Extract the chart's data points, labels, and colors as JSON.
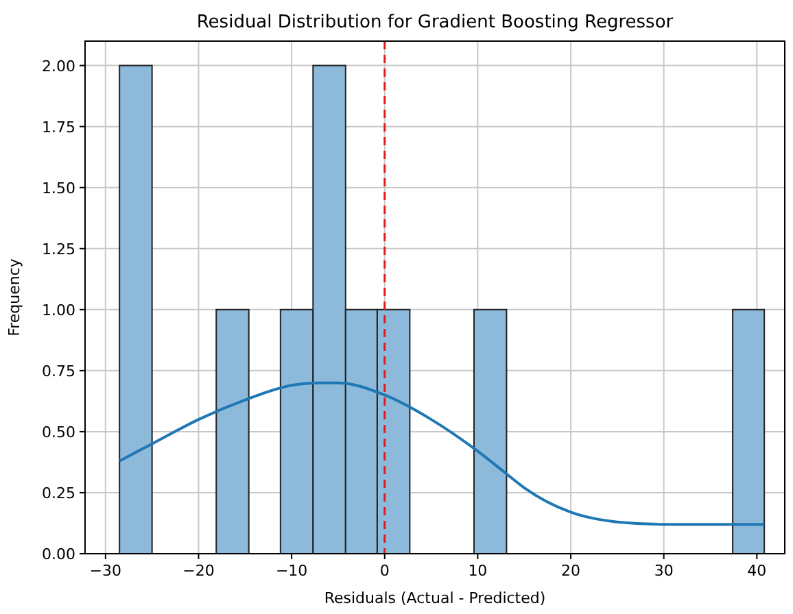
{
  "chart_data": {
    "type": "histogram",
    "title": "Residual Distribution for Gradient Boosting Regressor",
    "xlabel": "Residuals (Actual - Predicted)",
    "ylabel": "Frequency",
    "bins": [
      -28.5,
      -25.0,
      -18.1,
      -14.6,
      -11.2,
      -7.7,
      -4.2,
      -0.8,
      2.7,
      9.6,
      13.1,
      37.4,
      40.8
    ],
    "values": [
      2,
      0,
      1,
      0,
      1,
      2,
      1,
      1,
      0,
      1,
      0,
      1
    ],
    "color": "#8db9da",
    "series": [
      {
        "type": "line",
        "color": "#1f77b4",
        "x": [
          -28.5,
          -25,
          -20,
          -15,
          -10,
          -7,
          -5,
          0,
          5,
          10,
          13,
          15,
          20,
          25,
          30,
          35,
          40.8
        ],
        "values": [
          0.38,
          0.45,
          0.55,
          0.63,
          0.69,
          0.7,
          0.7,
          0.65,
          0.55,
          0.42,
          0.33,
          0.27,
          0.17,
          0.13,
          0.12,
          0.12,
          0.12
        ]
      }
    ],
    "xlim": [
      -32.2,
      43
    ],
    "xticks": [
      {
        "value": -30,
        "label": "−30"
      },
      {
        "value": -20,
        "label": "−20"
      },
      {
        "value": -10,
        "label": "−10"
      },
      0,
      10,
      20,
      30,
      40
    ],
    "ylim": [
      0,
      2.1
    ],
    "yticks": [
      {
        "value": 0,
        "label": "0.00"
      },
      {
        "value": 0.25,
        "label": "0.25"
      },
      {
        "value": 0.5,
        "label": "0.50"
      },
      {
        "value": 0.75,
        "label": "0.75"
      },
      {
        "value": 1,
        "label": "1.00"
      },
      {
        "value": 1.25,
        "label": "1.25"
      },
      {
        "value": 1.5,
        "label": "1.50"
      },
      {
        "value": 1.75,
        "label": "1.75"
      },
      {
        "value": 2,
        "label": "2.00"
      }
    ],
    "grid": true,
    "ref_lines": [
      {
        "axis": "x",
        "value": 0,
        "color": "#e41a1c",
        "line_style": "dashed"
      }
    ]
  }
}
